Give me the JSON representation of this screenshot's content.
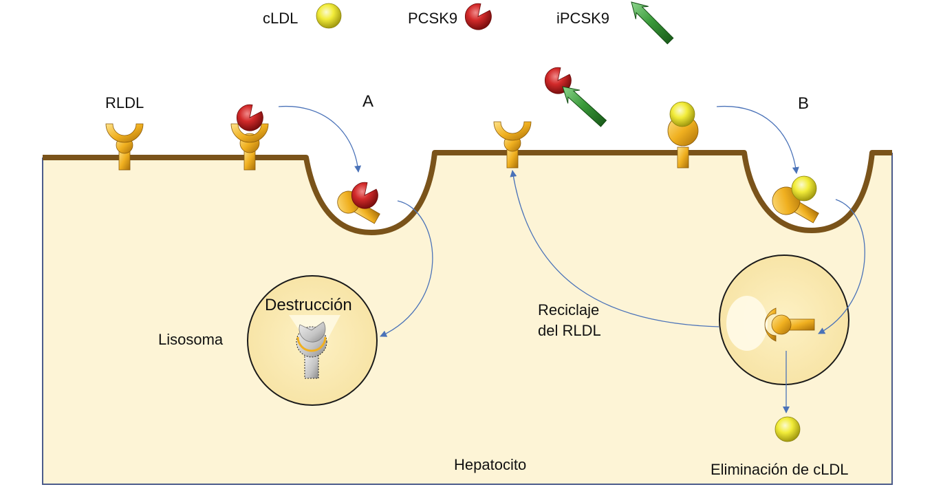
{
  "legend": {
    "cldl": "cLDL",
    "pcsk9": "PCSK9",
    "ipcsk9": "iPCSK9"
  },
  "labels": {
    "rldl": "RLDL",
    "pathway_a": "A",
    "pathway_b": "B",
    "destruction": "Destrucción",
    "lysosome": "Lisosoma",
    "recycling_line1": "Reciclaje",
    "recycling_line2": "del RLDL",
    "hepatocyte": "Hepatocito",
    "elimination": "Eliminación de cLDL"
  },
  "colors": {
    "cell": "#fdf4d6",
    "membrane": "#7a531a",
    "receptor": "#f0b020",
    "ldl": "#f2ec3a",
    "pcsk9": "#d22a2a",
    "inhibitor": "#3a9a3a",
    "arrow": "#4a72b8",
    "frame": "#4a5a8a"
  }
}
